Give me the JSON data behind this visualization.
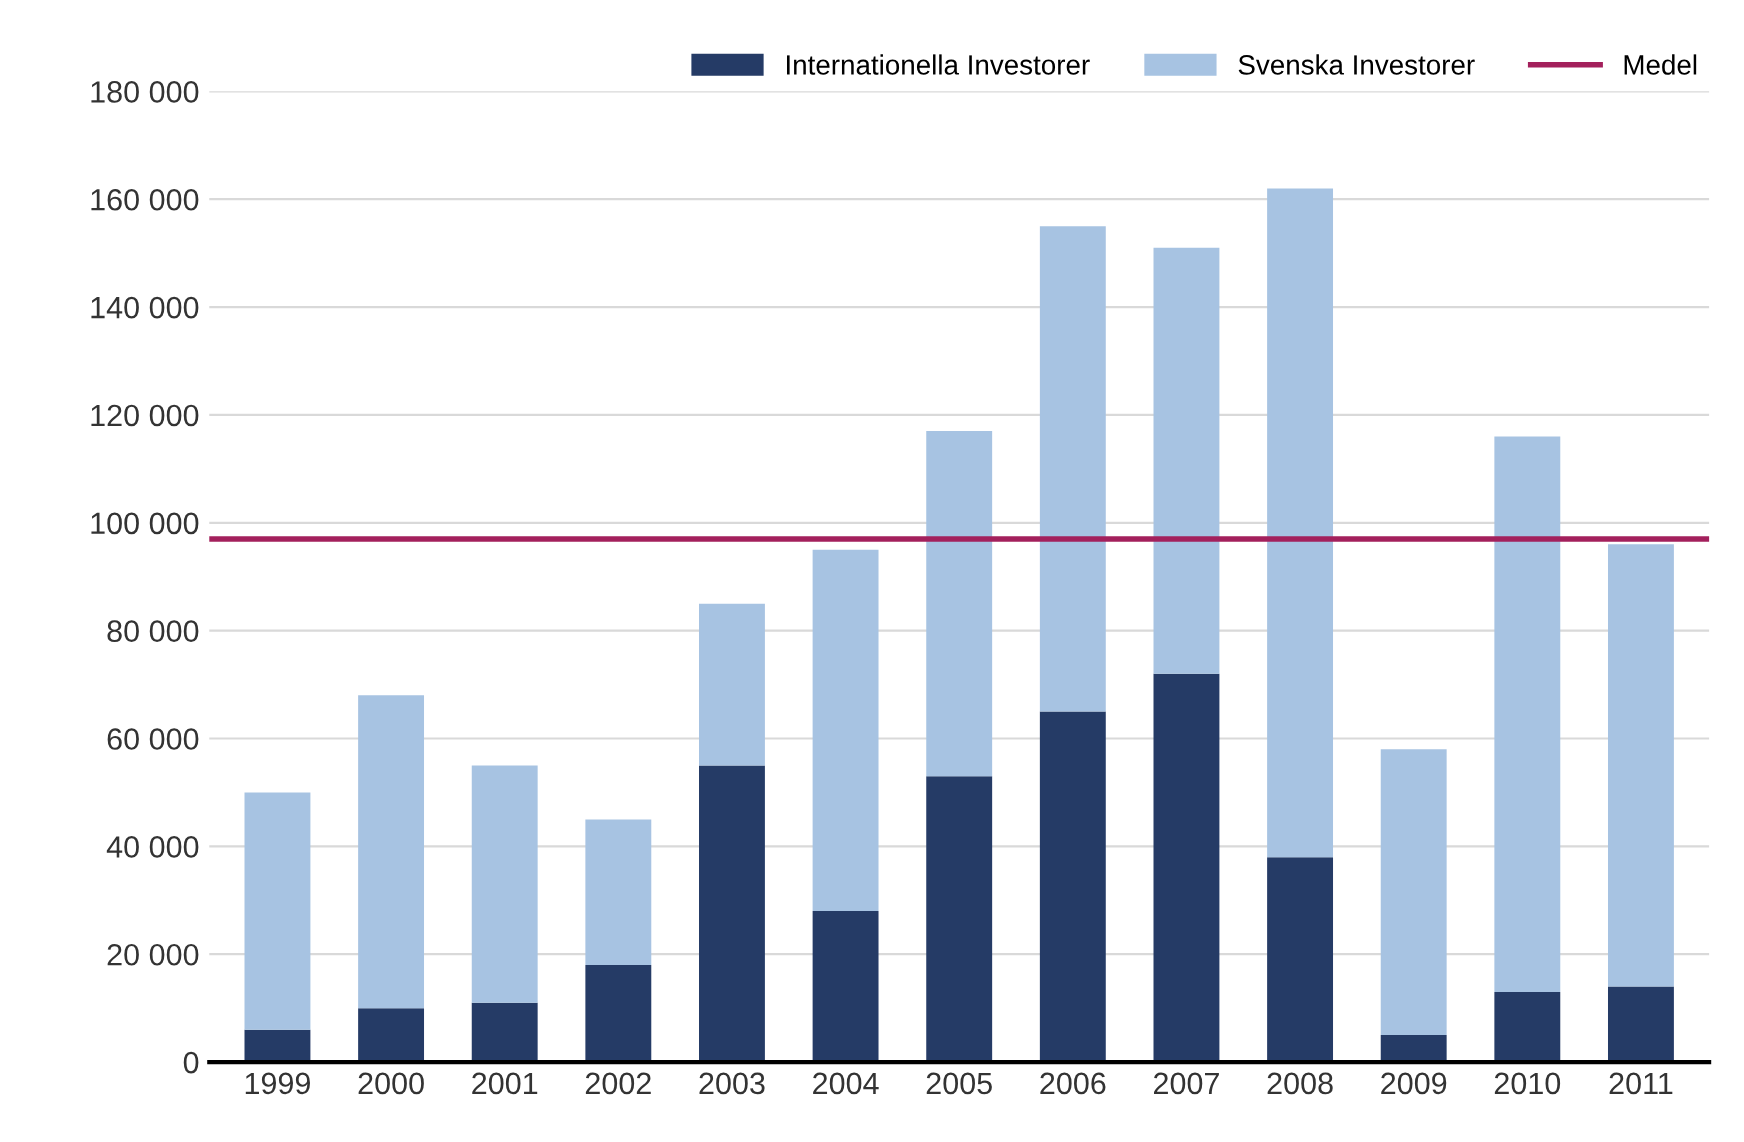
{
  "chart_data": {
    "type": "bar",
    "stacked": true,
    "categories": [
      "1999",
      "2000",
      "2001",
      "2002",
      "2003",
      "2004",
      "2005",
      "2006",
      "2007",
      "2008",
      "2009",
      "2010",
      "2011"
    ],
    "series": [
      {
        "name": "Internationella Investorer",
        "color": "#253b66",
        "values": [
          6000,
          10000,
          11000,
          18000,
          55000,
          28000,
          53000,
          65000,
          72000,
          38000,
          5000,
          13000,
          14000
        ]
      },
      {
        "name": "Svenska Investorer",
        "color": "#a7c3e2",
        "values": [
          44000,
          58000,
          44000,
          27000,
          30000,
          67000,
          64000,
          90000,
          79000,
          124000,
          53000,
          103000,
          82000
        ]
      }
    ],
    "ref_lines": [
      {
        "axis": "y",
        "value": 97000,
        "label": "Medel",
        "color": "#a3205c"
      }
    ],
    "ylim": [
      0,
      180000
    ],
    "yticks": [
      {
        "value": 0,
        "label": "0"
      },
      {
        "value": 20000,
        "label": "20 000"
      },
      {
        "value": 40000,
        "label": "40 000"
      },
      {
        "value": 60000,
        "label": "60 000"
      },
      {
        "value": 80000,
        "label": "80 000"
      },
      {
        "value": 100000,
        "label": "100 000"
      },
      {
        "value": 120000,
        "label": "120 000"
      },
      {
        "value": 140000,
        "label": "140 000"
      },
      {
        "value": 160000,
        "label": "160 000"
      },
      {
        "value": 180000,
        "label": "180 000"
      }
    ],
    "grid": "y",
    "legend": "top right"
  }
}
